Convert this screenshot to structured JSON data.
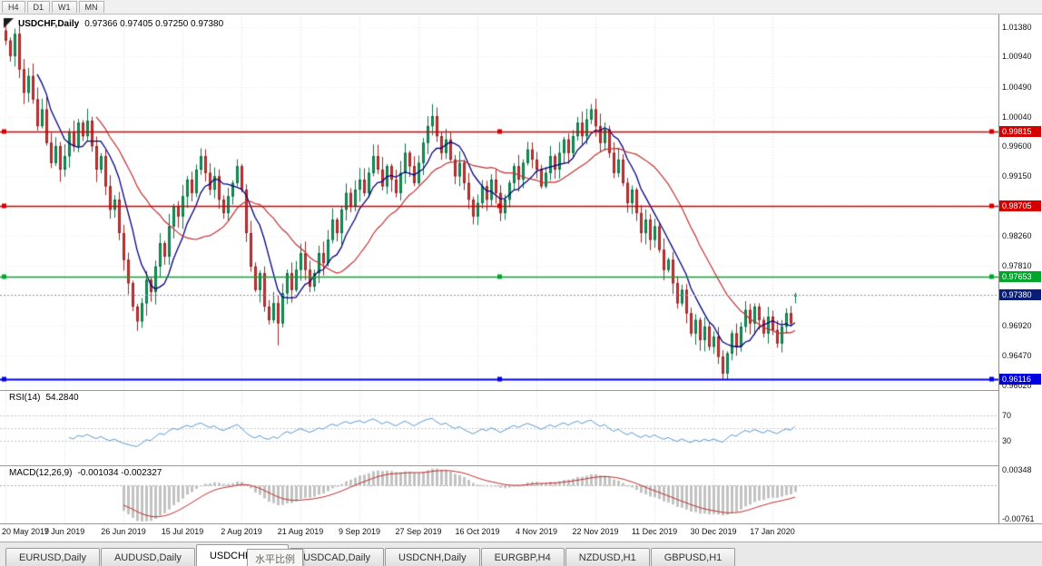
{
  "toolbar": {
    "timeframes": [
      "H4",
      "D1",
      "W1",
      "MN"
    ]
  },
  "chart": {
    "symbol_title": "USDCHF,Daily",
    "ohlc_title": "0.97366 0.97405 0.97250 0.97380"
  },
  "rsi_header": {
    "label": "RSI(14)",
    "value": "54.2840"
  },
  "macd_header": {
    "label": "MACD(12,26,9)",
    "value": "-0.001034 -0.002327"
  },
  "tooltip": {
    "text": "水平比例"
  },
  "tabs": [
    {
      "label": "EURUSD,Daily",
      "active": false
    },
    {
      "label": "AUDUSD,Daily",
      "active": false
    },
    {
      "label": "USDCHF,Daily",
      "active": true
    },
    {
      "label": "USDCAD,Daily",
      "active": false
    },
    {
      "label": "USDCNH,Daily",
      "active": false
    },
    {
      "label": "EURGBP,H4",
      "active": false
    },
    {
      "label": "NZDUSD,H1",
      "active": false
    },
    {
      "label": "GBPUSD,H1",
      "active": false
    }
  ],
  "chart_data": {
    "type": "candlestick",
    "symbol": "USDCHF",
    "timeframe": "Daily",
    "ohlc_display": {
      "open": "0.97366",
      "high": "0.97405",
      "low": "0.97250",
      "close": "0.97380"
    },
    "y_ticks": [
      "1.01380",
      "1.00940",
      "1.00490",
      "1.00040",
      "0.99600",
      "0.99150",
      "0.98700",
      "0.98260",
      "0.97810",
      "0.97360",
      "0.96920",
      "0.96470",
      "0.96020"
    ],
    "h_lines": [
      {
        "value": "0.99815",
        "color": "#d40000"
      },
      {
        "value": "0.98705",
        "color": "#d40000"
      },
      {
        "value": "0.97653",
        "color": "#00a62c"
      },
      {
        "value": "0.96116",
        "color": "#0000e0"
      }
    ],
    "current_price": {
      "value": "0.97380",
      "label_bg": "#0a1e78"
    },
    "x_labels": [
      "20 May 2019",
      "7 Jun 2019",
      "26 Jun 2019",
      "15 Jul 2019",
      "2 Aug 2019",
      "21 Aug 2019",
      "9 Sep 2019",
      "27 Sep 2019",
      "16 Oct 2019",
      "4 Nov 2019",
      "22 Nov 2019",
      "11 Dec 2019",
      "30 Dec 2019",
      "17 Jan 2020"
    ],
    "x_label_indices": [
      0,
      13,
      26,
      39,
      52,
      65,
      78,
      91,
      104,
      117,
      130,
      143,
      156,
      169
    ],
    "closes": [
      1.0118,
      1.0095,
      1.0128,
      1.0075,
      1.004,
      1.0065,
      1.003,
      0.999,
      1.0015,
      0.9965,
      0.9935,
      0.996,
      0.9925,
      0.9945,
      0.9982,
      0.996,
      0.9995,
      0.9975,
      0.9998,
      0.996,
      0.9925,
      0.9945,
      0.99,
      0.9865,
      0.988,
      0.983,
      0.979,
      0.9755,
      0.972,
      0.9698,
      0.9725,
      0.976,
      0.9742,
      0.978,
      0.9815,
      0.9795,
      0.984,
      0.987,
      0.9855,
      0.9885,
      0.991,
      0.989,
      0.9925,
      0.9945,
      0.992,
      0.9895,
      0.9915,
      0.988,
      0.986,
      0.9885,
      0.9905,
      0.993,
      0.9895,
      0.983,
      0.978,
      0.9745,
      0.977,
      0.972,
      0.97,
      0.9725,
      0.9695,
      0.974,
      0.977,
      0.9745,
      0.9775,
      0.98,
      0.9775,
      0.975,
      0.977,
      0.98,
      0.9785,
      0.982,
      0.985,
      0.983,
      0.9865,
      0.989,
      0.987,
      0.9895,
      0.991,
      0.989,
      0.992,
      0.9945,
      0.9925,
      0.99,
      0.993,
      0.991,
      0.989,
      0.992,
      0.995,
      0.993,
      0.9905,
      0.9935,
      0.9965,
      0.999,
      1.0005,
      0.9975,
      0.995,
      0.997,
      0.994,
      0.9915,
      0.9935,
      0.9905,
      0.988,
      0.9855,
      0.9875,
      0.99,
      0.988,
      0.991,
      0.989,
      0.986,
      0.988,
      0.9905,
      0.993,
      0.991,
      0.9935,
      0.9955,
      0.994,
      0.9925,
      0.99,
      0.992,
      0.9945,
      0.9925,
      0.995,
      0.997,
      0.995,
      0.9975,
      0.9995,
      0.9975,
      1.0,
      1.0015,
      0.999,
      0.9965,
      0.9985,
      0.995,
      0.992,
      0.994,
      0.9905,
      0.9875,
      0.9895,
      0.986,
      0.983,
      0.985,
      0.982,
      0.984,
      0.9805,
      0.9775,
      0.979,
      0.9755,
      0.9725,
      0.9745,
      0.971,
      0.968,
      0.97,
      0.967,
      0.969,
      0.966,
      0.9675,
      0.9645,
      0.962,
      0.965,
      0.968,
      0.966,
      0.969,
      0.9715,
      0.9695,
      0.972,
      0.97,
      0.968,
      0.9705,
      0.9685,
      0.9665,
      0.969,
      0.971,
      0.9695,
      0.9738
    ],
    "high_overrides": {
      "2": 1.0136,
      "94": 1.0023,
      "129": 1.0023
    },
    "low_overrides": {
      "60": 0.9662,
      "158": 0.96116
    },
    "last_ohlc": [
      0.97366,
      0.97405,
      0.9725,
      0.9738
    ],
    "ma_fast_period": 8,
    "ma_slow_period": 21,
    "rsi": {
      "period": 14,
      "value_display": "54.2840",
      "levels": [
        70,
        50,
        30
      ],
      "axis_labels": [
        "70",
        "30"
      ]
    },
    "macd": {
      "fast": 12,
      "slow": 26,
      "signal": 9,
      "value_display": "-0.001034 -0.002327",
      "axis_max_label": "0.00348",
      "axis_min_label": "-0.00761",
      "axis_max": 0.00348,
      "axis_min": -0.00761
    },
    "colors": {
      "up": "#10a15f",
      "up_border": "#0b7245",
      "down": "#d93636",
      "down_border": "#9c2424",
      "ma_fast": "#000080",
      "ma_slow": "#c03030",
      "rsi_line": "#5a9bd4",
      "macd_hist": "#c2c2c2",
      "macd_signal": "#c03030",
      "grid": "#dcdcdc",
      "grid_h": "#ededed"
    }
  }
}
